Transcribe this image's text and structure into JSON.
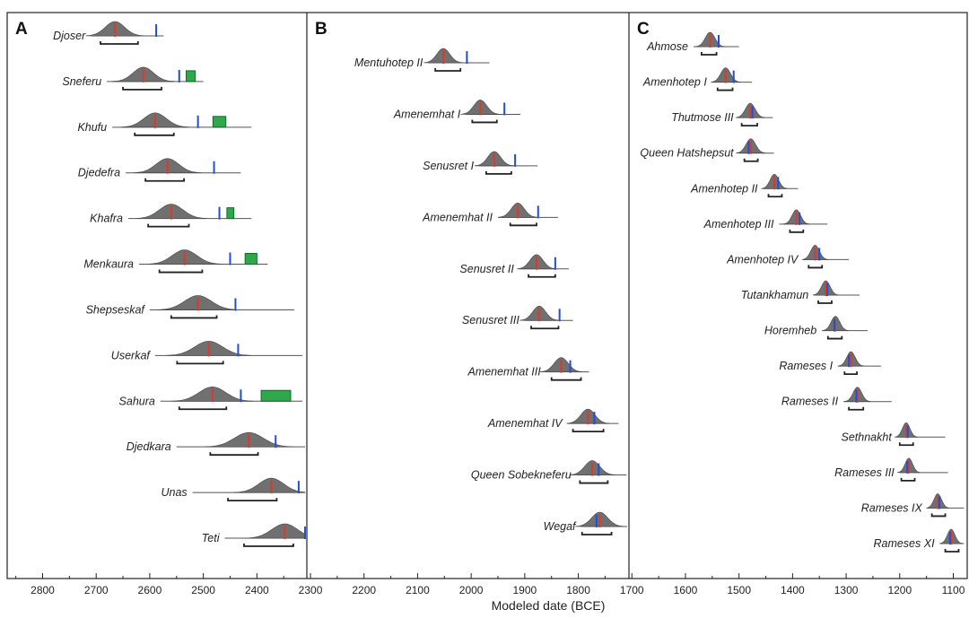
{
  "chart_data": {
    "type": "scatter",
    "xlabel": "Modeled date (BCE)",
    "xlim": [
      2850,
      1080
    ],
    "x_reversed": true,
    "ticks": [
      2800,
      2700,
      2600,
      2500,
      2400,
      2300,
      2200,
      2100,
      2000,
      1900,
      1800,
      1700,
      1600,
      1500,
      1400,
      1300,
      1200,
      1100
    ],
    "colors": {
      "distribution_fill": "#707070",
      "median_marker": "#d93a2b",
      "historical_date_marker": "#1f4fd6",
      "range_box": "#2ea84a",
      "range_box_edge": "#0f6a24",
      "interval_bar": "#222222"
    },
    "panels": [
      {
        "label": "A",
        "rulers": [
          {
            "name": "Djoser",
            "median": 2665,
            "spread": 18,
            "line": [
              2710,
              2574
            ],
            "interval": [
              2692,
              2622
            ],
            "marker": 2588,
            "box": null
          },
          {
            "name": "Sneferu",
            "median": 2612,
            "spread": 19,
            "line": [
              2680,
              2500
            ],
            "interval": [
              2650,
              2578
            ],
            "marker": 2545,
            "box": [
              2532,
              2515
            ]
          },
          {
            "name": "Khufu",
            "median": 2590,
            "spread": 21,
            "line": [
              2670,
              2410
            ],
            "interval": [
              2628,
              2555
            ],
            "marker": 2510,
            "box": [
              2482,
              2458
            ]
          },
          {
            "name": "Djedefra",
            "median": 2567,
            "spread": 21,
            "line": [
              2645,
              2430
            ],
            "interval": [
              2608,
              2536
            ],
            "marker": 2480,
            "box": null
          },
          {
            "name": "Khafra",
            "median": 2560,
            "spread": 22,
            "line": [
              2640,
              2410
            ],
            "interval": [
              2603,
              2527
            ],
            "marker": 2470,
            "box": [
              2456,
              2443
            ]
          },
          {
            "name": "Menkaura",
            "median": 2535,
            "spread": 23,
            "line": [
              2620,
              2380
            ],
            "interval": [
              2582,
              2502
            ],
            "marker": 2450,
            "box": [
              2422,
              2400
            ]
          },
          {
            "name": "Shepseskaf",
            "median": 2510,
            "spread": 25,
            "line": [
              2600,
              2330
            ],
            "interval": [
              2560,
              2475
            ],
            "marker": 2440,
            "box": null
          },
          {
            "name": "Userkaf",
            "median": 2490,
            "spread": 26,
            "line": [
              2590,
              2315
            ],
            "interval": [
              2549,
              2463
            ],
            "marker": 2435,
            "box": null
          },
          {
            "name": "Sahura",
            "median": 2483,
            "spread": 25,
            "line": [
              2580,
              2315
            ],
            "interval": [
              2545,
              2457
            ],
            "marker": 2430,
            "box": [
              2392,
              2337
            ]
          },
          {
            "name": "Djedkara",
            "median": 2415,
            "spread": 27,
            "line": [
              2550,
              2230
            ],
            "interval": [
              2487,
              2398
            ],
            "marker": 2365,
            "box": null
          },
          {
            "name": "Unas",
            "median": 2373,
            "spread": 23,
            "line": [
              2520,
              2230
            ],
            "interval": [
              2454,
              2363
            ],
            "marker": 2322,
            "box": null
          },
          {
            "name": "Teti",
            "median": 2348,
            "spread": 24,
            "line": [
              2460,
              2230
            ],
            "interval": [
              2424,
              2332
            ],
            "marker": 2304,
            "box": null
          }
        ]
      },
      {
        "label": "B",
        "rulers": [
          {
            "name": "Mentuhotep II",
            "median": 2052,
            "spread": 12,
            "line": [
              2080,
              1966
            ],
            "interval": [
              2067,
              2020
            ],
            "marker": 2008,
            "box": null
          },
          {
            "name": "Amenemhat I",
            "median": 1983,
            "spread": 12,
            "line": [
              2010,
              1908
            ],
            "interval": [
              1998,
              1952
            ],
            "marker": 1938,
            "box": null
          },
          {
            "name": "Senusret I",
            "median": 1957,
            "spread": 12,
            "line": [
              1985,
              1876
            ],
            "interval": [
              1972,
              1925
            ],
            "marker": 1918,
            "box": null
          },
          {
            "name": "Amenemhat II",
            "median": 1913,
            "spread": 12,
            "line": [
              1950,
              1838
            ],
            "interval": [
              1927,
              1878
            ],
            "marker": 1875,
            "box": null
          },
          {
            "name": "Senusret II",
            "median": 1878,
            "spread": 12,
            "line": [
              1910,
              1818
            ],
            "interval": [
              1893,
              1843
            ],
            "marker": 1843,
            "box": null
          },
          {
            "name": "Senusret III",
            "median": 1873,
            "spread": 12,
            "line": [
              1900,
              1810
            ],
            "interval": [
              1888,
              1837
            ],
            "marker": 1835,
            "box": null
          },
          {
            "name": "Amenemhat III",
            "median": 1832,
            "spread": 13,
            "line": [
              1860,
              1780
            ],
            "interval": [
              1850,
              1795
            ],
            "marker": 1815,
            "box": null
          },
          {
            "name": "Amenemhat IV",
            "median": 1782,
            "spread": 13,
            "line": [
              1820,
              1725
            ],
            "interval": [
              1810,
              1753
            ],
            "marker": 1770,
            "box": null
          },
          {
            "name": "Queen Sobekneferu",
            "median": 1774,
            "spread": 14,
            "line": [
              1803,
              1710
            ],
            "interval": [
              1797,
              1745
            ],
            "marker": 1762,
            "box": null
          },
          {
            "name": "Wegaf",
            "median": 1760,
            "spread": 15,
            "line": [
              1795,
              1700
            ],
            "interval": [
              1793,
              1738
            ],
            "marker": 1766,
            "box": null
          }
        ]
      },
      {
        "label": "C",
        "rulers": [
          {
            "name": "Ahmose",
            "median": 1554,
            "spread": 9,
            "line": [
              1585,
              1500
            ],
            "interval": [
              1570,
              1542
            ],
            "marker": 1538,
            "box": null
          },
          {
            "name": "Amenhotep I",
            "median": 1525,
            "spread": 9,
            "line": [
              1550,
              1476
            ],
            "interval": [
              1540,
              1512
            ],
            "marker": 1510,
            "box": null
          },
          {
            "name": "Thutmose III",
            "median": 1479,
            "spread": 9,
            "line": [
              1500,
              1437
            ],
            "interval": [
              1495,
              1466
            ],
            "marker": 1475,
            "box": null
          },
          {
            "name": "Queen Hatshepsut",
            "median": 1478,
            "spread": 9,
            "line": [
              1500,
              1435
            ],
            "interval": [
              1490,
              1465
            ],
            "marker": 1482,
            "box": null
          },
          {
            "name": "Amenhotep II",
            "median": 1434,
            "spread": 8,
            "line": [
              1455,
              1390
            ],
            "interval": [
              1445,
              1420
            ],
            "marker": 1427,
            "box": null
          },
          {
            "name": "Amenhotep III",
            "median": 1393,
            "spread": 8,
            "line": [
              1425,
              1335
            ],
            "interval": [
              1405,
              1380
            ],
            "marker": 1387,
            "box": null
          },
          {
            "name": "Amenhotep IV",
            "median": 1358,
            "spread": 8,
            "line": [
              1380,
              1295
            ],
            "interval": [
              1370,
              1345
            ],
            "marker": 1350,
            "box": null
          },
          {
            "name": "Tutankhamun",
            "median": 1338,
            "spread": 8,
            "line": [
              1360,
              1275
            ],
            "interval": [
              1352,
              1327
            ],
            "marker": 1335,
            "box": null
          },
          {
            "name": "Horemheb",
            "median": 1320,
            "spread": 8,
            "line": [
              1345,
              1260
            ],
            "interval": [
              1334,
              1308
            ],
            "marker": 1322,
            "box": null
          },
          {
            "name": "Rameses I",
            "median": 1291,
            "spread": 8,
            "line": [
              1315,
              1235
            ],
            "interval": [
              1303,
              1280
            ],
            "marker": 1295,
            "box": null
          },
          {
            "name": "Rameses II",
            "median": 1279,
            "spread": 8,
            "line": [
              1305,
              1215
            ],
            "interval": [
              1295,
              1268
            ],
            "marker": 1281,
            "box": null
          },
          {
            "name": "Sethnakht",
            "median": 1188,
            "spread": 7,
            "line": [
              1205,
              1115
            ],
            "interval": [
              1200,
              1175
            ],
            "marker": 1185,
            "box": null
          },
          {
            "name": "Rameses III",
            "median": 1183,
            "spread": 7,
            "line": [
              1200,
              1110
            ],
            "interval": [
              1197,
              1172
            ],
            "marker": 1186,
            "box": null
          },
          {
            "name": "Rameses IX",
            "median": 1129,
            "spread": 7,
            "line": [
              1148,
              1080
            ],
            "interval": [
              1140,
              1115
            ],
            "marker": 1126,
            "box": null
          },
          {
            "name": "Rameses XI",
            "median": 1104,
            "spread": 7,
            "line": [
              1125,
              1080
            ],
            "interval": [
              1115,
              1090
            ],
            "marker": 1106,
            "box": null
          }
        ]
      }
    ]
  }
}
